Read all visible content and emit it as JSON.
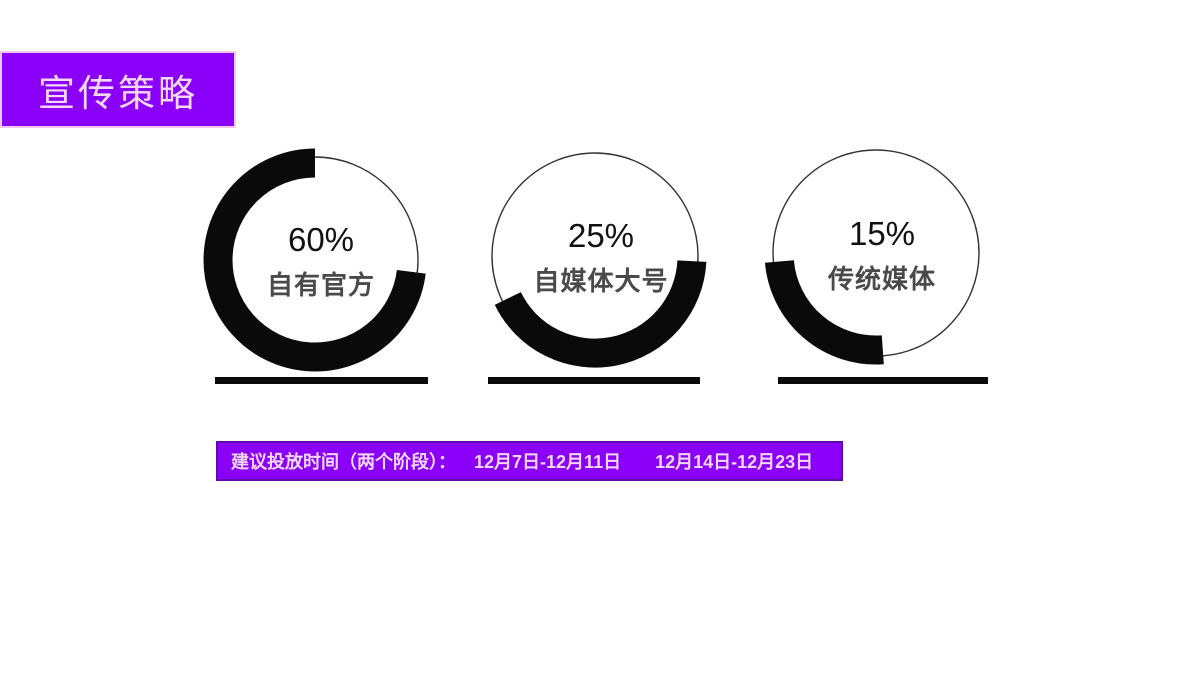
{
  "slide": {
    "title": "宣传策略",
    "background_color": "#ffffff",
    "accent_purple": "#8B00F8",
    "accent_purple_dark": "#5D0CA8",
    "accent_pink_border": "#F0C8EE",
    "light_text_color": "#F4D8F6"
  },
  "chart_data": {
    "type": "pie",
    "subtype": "donut-rings",
    "title": "宣传策略",
    "categories": [
      "自有官方",
      "自媒体大号",
      "传统媒体"
    ],
    "values": [
      60,
      25,
      15
    ],
    "unit": "%",
    "legend_position": "inside-rings",
    "rings": [
      {
        "percent_label": "60%",
        "label": "自有官方",
        "value": 60,
        "arc_start_deg": 7,
        "arc_end_deg": 270
      },
      {
        "percent_label": "25%",
        "label": "自媒体大号",
        "value": 25,
        "arc_start_deg": 3,
        "arc_end_deg": 154
      },
      {
        "percent_label": "15%",
        "label": "传统媒体",
        "value": 15,
        "arc_start_deg": 86,
        "arc_end_deg": 175
      }
    ]
  },
  "banner": {
    "label": "建议投放时间（两个阶段）：",
    "phase1": "12月7日-12月11日",
    "phase2": "12月14日-12月23日"
  }
}
